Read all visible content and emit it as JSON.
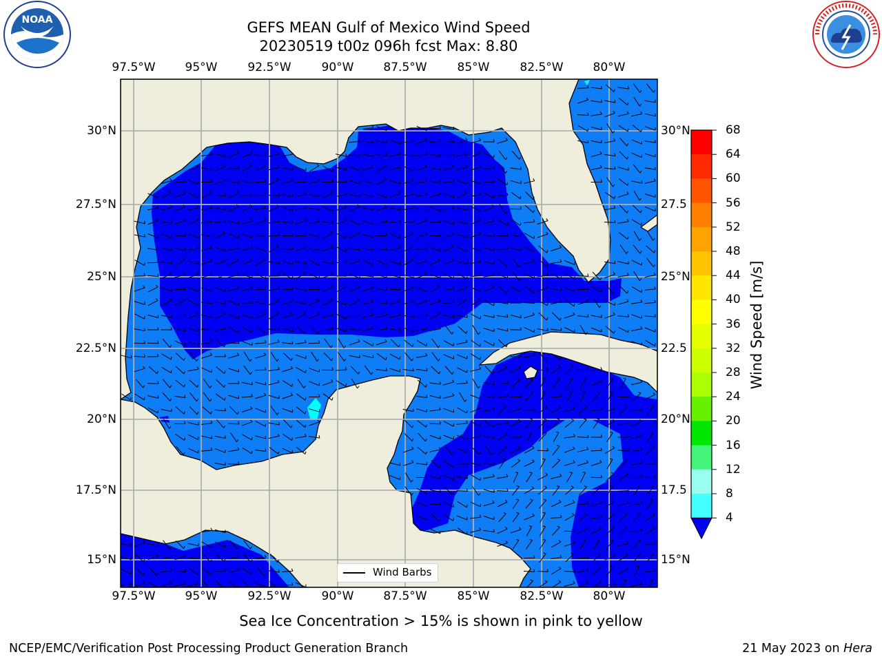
{
  "header": {
    "title_line1": "GEFS MEAN Gulf of Mexico Wind Speed",
    "title_line2": "20230519 t00z 096h fcst   Max: 8.80"
  },
  "logos": {
    "left": {
      "name": "noaa-logo",
      "text": "NOAA",
      "ring_text": "NATIONAL OCEANIC AND ATMOSPHERIC ADMINISTRATION · U.S. DEPARTMENT OF COMMERCE"
    },
    "right": {
      "name": "nws-logo",
      "ring_text": "NATIONAL WEATHER SERVICE"
    }
  },
  "map": {
    "lon_ticks": [
      "97.5°W",
      "95°W",
      "92.5°W",
      "90°W",
      "87.5°W",
      "85°W",
      "82.5°W",
      "80°W"
    ],
    "lat_ticks_left": [
      "30°N",
      "27.5°N",
      "25°N",
      "22.5°N",
      "20°N",
      "17.5°N",
      "15°N"
    ],
    "lat_ticks_right": [
      "30°N",
      "27.5",
      "25°N",
      "22.5",
      "20°N",
      "17.5",
      "15°N"
    ],
    "colors": {
      "land": "#efeddc",
      "speed_0_4": "#0000f5",
      "speed_4_8": "#0f7df5",
      "speed_8_12": "#00ffff",
      "gridline": "#b0b0b0"
    },
    "legend": {
      "label": "Wind Barbs"
    }
  },
  "colorbar": {
    "label": "Wind Speed [m/s]",
    "ticks": [
      "68",
      "64",
      "60",
      "56",
      "52",
      "48",
      "44",
      "40",
      "36",
      "32",
      "28",
      "24",
      "20",
      "16",
      "12",
      "8",
      "4"
    ],
    "colors": [
      "#ff0000",
      "#ff2a00",
      "#ff5500",
      "#ff7f00",
      "#ffa300",
      "#ffc400",
      "#ffe600",
      "#ffff00",
      "#e6ff00",
      "#ccff00",
      "#aaff00",
      "#66f000",
      "#00e600",
      "#44f57a",
      "#99ffee",
      "#44ffff",
      "#00f5f5",
      "#0f7df5",
      "#0000f5"
    ]
  },
  "subtitle": "Sea Ice Concentration > 15% is shown in pink to yellow",
  "footer": {
    "left": "NCEP/EMC/Verification Post Processing Product Generation Branch",
    "right_date": "21 May 2023 on ",
    "right_host": "Hera"
  }
}
